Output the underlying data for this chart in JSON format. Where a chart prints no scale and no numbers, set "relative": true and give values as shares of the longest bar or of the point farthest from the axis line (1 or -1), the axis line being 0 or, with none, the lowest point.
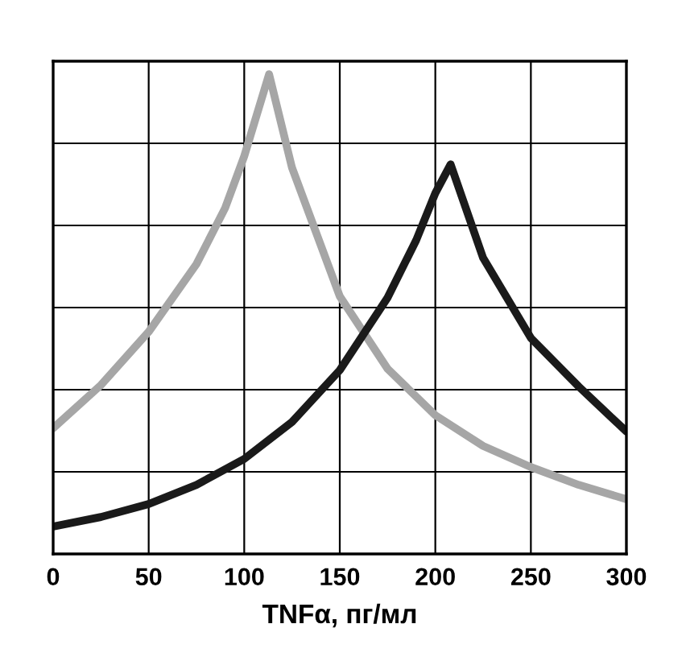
{
  "chart_data": {
    "type": "line",
    "xlabel": "TNFα, пг/мл",
    "relative": true,
    "xlim": [
      0,
      300
    ],
    "xticks": [
      0,
      50,
      100,
      150,
      200,
      250,
      300
    ],
    "grid": true,
    "tick_labels": "x",
    "marker": "none",
    "line_style": "solid",
    "series": [
      {
        "color": "#a6a6a6",
        "x": [
          0,
          25,
          50,
          75,
          90,
          100,
          113,
          125,
          150,
          175,
          200,
          225,
          250,
          275,
          300
        ],
        "values": [
          0.262,
          0.352,
          0.463,
          0.604,
          0.721,
          0.829,
          1,
          0.805,
          0.537,
          0.386,
          0.289,
          0.225,
          0.181,
          0.144,
          0.114
        ]
      },
      {
        "color": "#1a1a1a",
        "x": [
          0,
          25,
          50,
          75,
          100,
          125,
          150,
          175,
          190,
          200,
          208,
          225,
          250,
          275,
          300
        ],
        "values": [
          0.057,
          0.077,
          0.104,
          0.144,
          0.198,
          0.275,
          0.383,
          0.534,
          0.654,
          0.752,
          0.812,
          0.617,
          0.45,
          0.349,
          0.255
        ]
      }
    ]
  }
}
